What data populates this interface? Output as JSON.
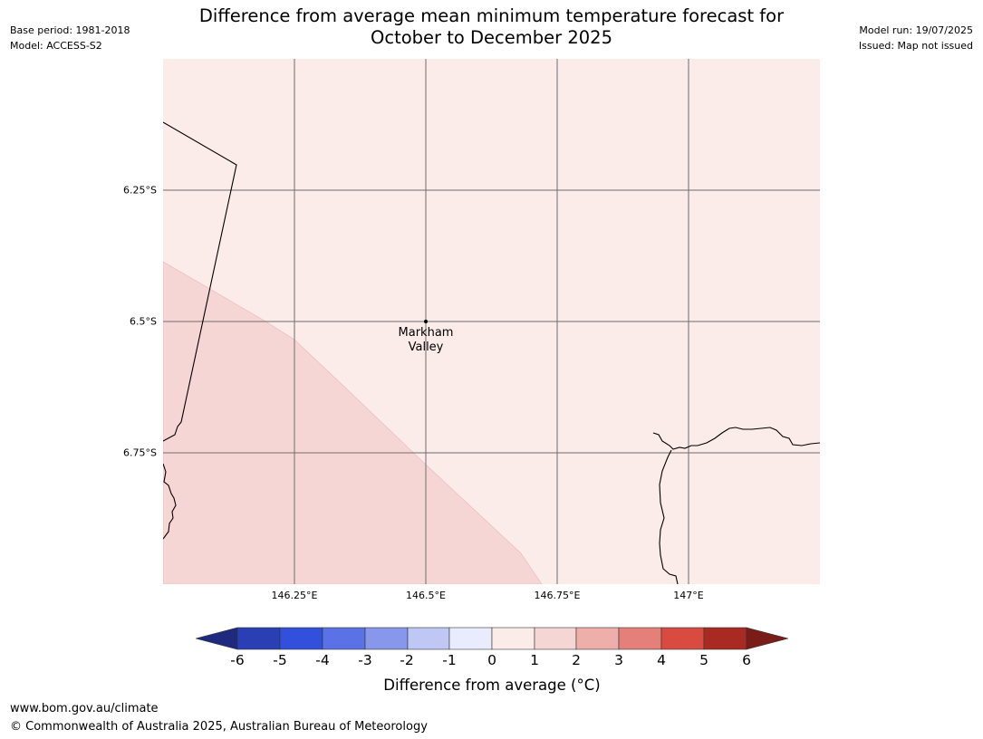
{
  "header": {
    "base_period": "Base period: 1981-2018",
    "model": "Model: ACCESS-S2",
    "model_run": "Model run: 19/07/2025",
    "issued": "Issued: Map not issued",
    "title_line1": "Difference from average mean minimum temperature forecast for",
    "title_line2": "October to December 2025"
  },
  "map": {
    "lat_labels": [
      "6.25°S",
      "6.5°S",
      "6.75°S"
    ],
    "lon_labels": [
      "146.25°E",
      "146.5°E",
      "146.75°E",
      "147°E"
    ],
    "place": {
      "line1": "Markham",
      "line2": "Valley"
    },
    "colors": {
      "sea_zero_to_one": "#fbebe9",
      "one_to_two": "#f6d6d4",
      "gridline": "#6e6e6e",
      "coast": "#000000"
    }
  },
  "colorbar": {
    "ticks": [
      "-6",
      "-5",
      "-4",
      "-3",
      "-2",
      "-1",
      "0",
      "1",
      "2",
      "3",
      "4",
      "5",
      "6"
    ],
    "colors": [
      "#1f2a7f",
      "#2a3fb4",
      "#3350dc",
      "#5b72e6",
      "#8797ec",
      "#bfc7f5",
      "#e9ecfc",
      "#fbebe9",
      "#f6d6d4",
      "#eeaea9",
      "#e57f7a",
      "#d94a40",
      "#a92a22",
      "#7a1c17"
    ],
    "label": "Difference from average (°C)"
  },
  "footer": {
    "url": "www.bom.gov.au/climate",
    "copyright": "© Commonwealth of Australia 2025, Australian Bureau of Meteorology"
  }
}
